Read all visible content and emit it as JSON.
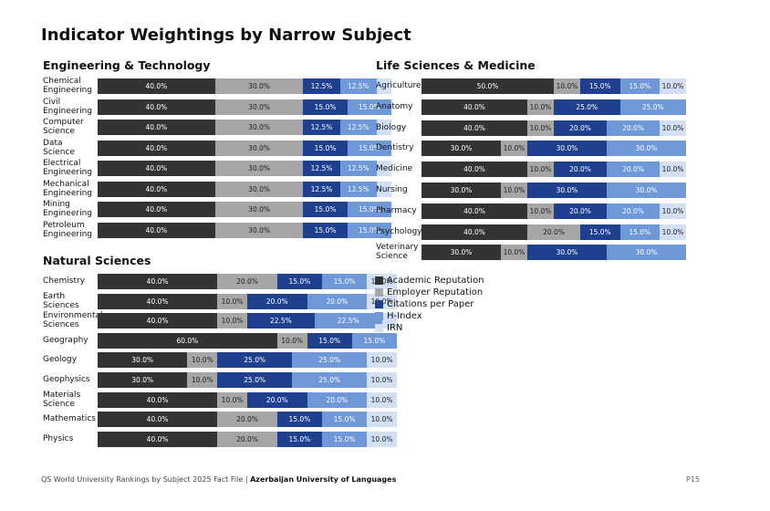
{
  "title": "Indicator Weightings by Narrow Subject",
  "footer": {
    "source": "QS World University Rankings by Subject 2025 Fact File |",
    "university": "Azerbaijan University of Languages",
    "page": "P15"
  },
  "colors": {
    "academic": "#333333",
    "employer": "#a6a6a6",
    "citations": "#1f3f8f",
    "hindex": "#6f98d8",
    "irn": "#d3e0f3"
  },
  "chart_data": [
    {
      "type": "bar",
      "title": "Engineering & Technology",
      "orientation": "horizontal",
      "stacked": true,
      "legend": [
        "Academic Reputation",
        "Employer Reputation",
        "Citations per Paper",
        "H-Index",
        "IRN"
      ],
      "categories": [
        "Chemical Engineering",
        "Civil Engineering",
        "Computer Science",
        "Data Science",
        "Electrical Engineering",
        "Mechanical Engineering",
        "Mining Engineering",
        "Petroleum Engineering"
      ],
      "series": [
        {
          "name": "Academic Reputation",
          "values": [
            40,
            40,
            40,
            40,
            40,
            40,
            40,
            40
          ]
        },
        {
          "name": "Employer Reputation",
          "values": [
            30,
            30,
            30,
            30,
            30,
            30,
            30,
            30
          ]
        },
        {
          "name": "Citations per Paper",
          "values": [
            12.5,
            15,
            12.5,
            15,
            12.5,
            12.5,
            15,
            15
          ]
        },
        {
          "name": "H-Index",
          "values": [
            12.5,
            15,
            12.5,
            15,
            12.5,
            12.5,
            15,
            15
          ]
        },
        {
          "name": "IRN",
          "values": [
            5,
            0,
            5,
            0,
            5,
            5,
            0,
            0
          ]
        }
      ],
      "labels": [
        [
          "40.0%",
          "30.0%",
          "12.5%",
          "12.5%",
          ""
        ],
        [
          "40.0%",
          "30.0%",
          "15.0%",
          "15.0%",
          ""
        ],
        [
          "40.0%",
          "30.0%",
          "12.5%",
          "12.5%",
          ""
        ],
        [
          "40.0%",
          "30.0%",
          "15.0%",
          "15.0%",
          ""
        ],
        [
          "40.0%",
          "30.0%",
          "12.5%",
          "12.5%",
          ""
        ],
        [
          "40.0%",
          "30.0%",
          "12.5%",
          "12.5%",
          ""
        ],
        [
          "40.0%",
          "30.0%",
          "15.0%",
          "15.0%",
          ""
        ],
        [
          "40.0%",
          "30.0%",
          "15.0%",
          "15.0%",
          ""
        ]
      ]
    },
    {
      "type": "bar",
      "title": "Life Sciences & Medicine",
      "orientation": "horizontal",
      "stacked": true,
      "legend": [
        "Academic Reputation",
        "Employer Reputation",
        "Citations per Paper",
        "H-Index",
        "IRN"
      ],
      "categories": [
        "Agriculture",
        "Anatomy",
        "Biology",
        "Dentistry",
        "Medicine",
        "Nursing",
        "Pharmacy",
        "Psychology",
        "Veterinary Science"
      ],
      "series": [
        {
          "name": "Academic Reputation",
          "values": [
            50,
            40,
            40,
            30,
            40,
            30,
            40,
            40,
            30
          ]
        },
        {
          "name": "Employer Reputation",
          "values": [
            10,
            10,
            10,
            10,
            10,
            10,
            10,
            20,
            10
          ]
        },
        {
          "name": "Citations per Paper",
          "values": [
            15,
            25,
            20,
            30,
            20,
            30,
            20,
            15,
            30
          ]
        },
        {
          "name": "H-Index",
          "values": [
            15,
            25,
            20,
            30,
            20,
            30,
            20,
            15,
            30
          ]
        },
        {
          "name": "IRN",
          "values": [
            10,
            0,
            10,
            0,
            10,
            0,
            10,
            10,
            0
          ]
        }
      ],
      "labels": [
        [
          "50.0%",
          "10.0%",
          "15.0%",
          "15.0%",
          "10.0%"
        ],
        [
          "40.0%",
          "10.0%",
          "25.0%",
          "25.0%",
          ""
        ],
        [
          "40.0%",
          "10.0%",
          "20.0%",
          "20.0%",
          "10.0%"
        ],
        [
          "30.0%",
          "10.0%",
          "30.0%",
          "30.0%",
          ""
        ],
        [
          "40.0%",
          "10.0%",
          "20.0%",
          "20.0%",
          "10.0%"
        ],
        [
          "30.0%",
          "10.0%",
          "30.0%",
          "30.0%",
          ""
        ],
        [
          "40.0%",
          "10.0%",
          "20.0%",
          "20.0%",
          "10.0%"
        ],
        [
          "40.0%",
          "20.0%",
          "15.0%",
          "15.0%",
          "10.0%"
        ],
        [
          "30.0%",
          "10.0%",
          "30.0%",
          "30.0%",
          ""
        ]
      ]
    },
    {
      "type": "bar",
      "title": "Natural Sciences",
      "orientation": "horizontal",
      "stacked": true,
      "legend": [
        "Academic Reputation",
        "Employer Reputation",
        "Citations per Paper",
        "H-Index",
        "IRN"
      ],
      "categories": [
        "Chemistry",
        "Earth Sciences",
        "Environmental Sciences",
        "Geography",
        "Geology",
        "Geophysics",
        "Materials Science",
        "Mathematics",
        "Physics"
      ],
      "series": [
        {
          "name": "Academic Reputation",
          "values": [
            40,
            40,
            40,
            60,
            30,
            30,
            40,
            40,
            40
          ]
        },
        {
          "name": "Employer Reputation",
          "values": [
            20,
            10,
            10,
            10,
            10,
            10,
            10,
            20,
            20
          ]
        },
        {
          "name": "Citations per Paper",
          "values": [
            15,
            20,
            22.5,
            15,
            25,
            25,
            20,
            15,
            15
          ]
        },
        {
          "name": "H-Index",
          "values": [
            15,
            20,
            22.5,
            15,
            25,
            25,
            20,
            15,
            15
          ]
        },
        {
          "name": "IRN",
          "values": [
            10,
            10,
            5,
            0,
            10,
            10,
            10,
            10,
            10
          ]
        }
      ],
      "labels": [
        [
          "40.0%",
          "20.0%",
          "15.0%",
          "15.0%",
          "10.0%"
        ],
        [
          "40.0%",
          "10.0%",
          "20.0%",
          "20.0%",
          "10.0%"
        ],
        [
          "40.0%",
          "10.0%",
          "22.5%",
          "22.5%",
          ""
        ],
        [
          "60.0%",
          "10.0%",
          "15.0%",
          "15.0%",
          ""
        ],
        [
          "30.0%",
          "10.0%",
          "25.0%",
          "25.0%",
          "10.0%"
        ],
        [
          "30.0%",
          "10.0%",
          "25.0%",
          "25.0%",
          "10.0%"
        ],
        [
          "40.0%",
          "10.0%",
          "20.0%",
          "20.0%",
          "10.0%"
        ],
        [
          "40.0%",
          "20.0%",
          "15.0%",
          "15.0%",
          "10.0%"
        ],
        [
          "40.0%",
          "20.0%",
          "15.0%",
          "15.0%",
          "10.0%"
        ]
      ]
    }
  ]
}
